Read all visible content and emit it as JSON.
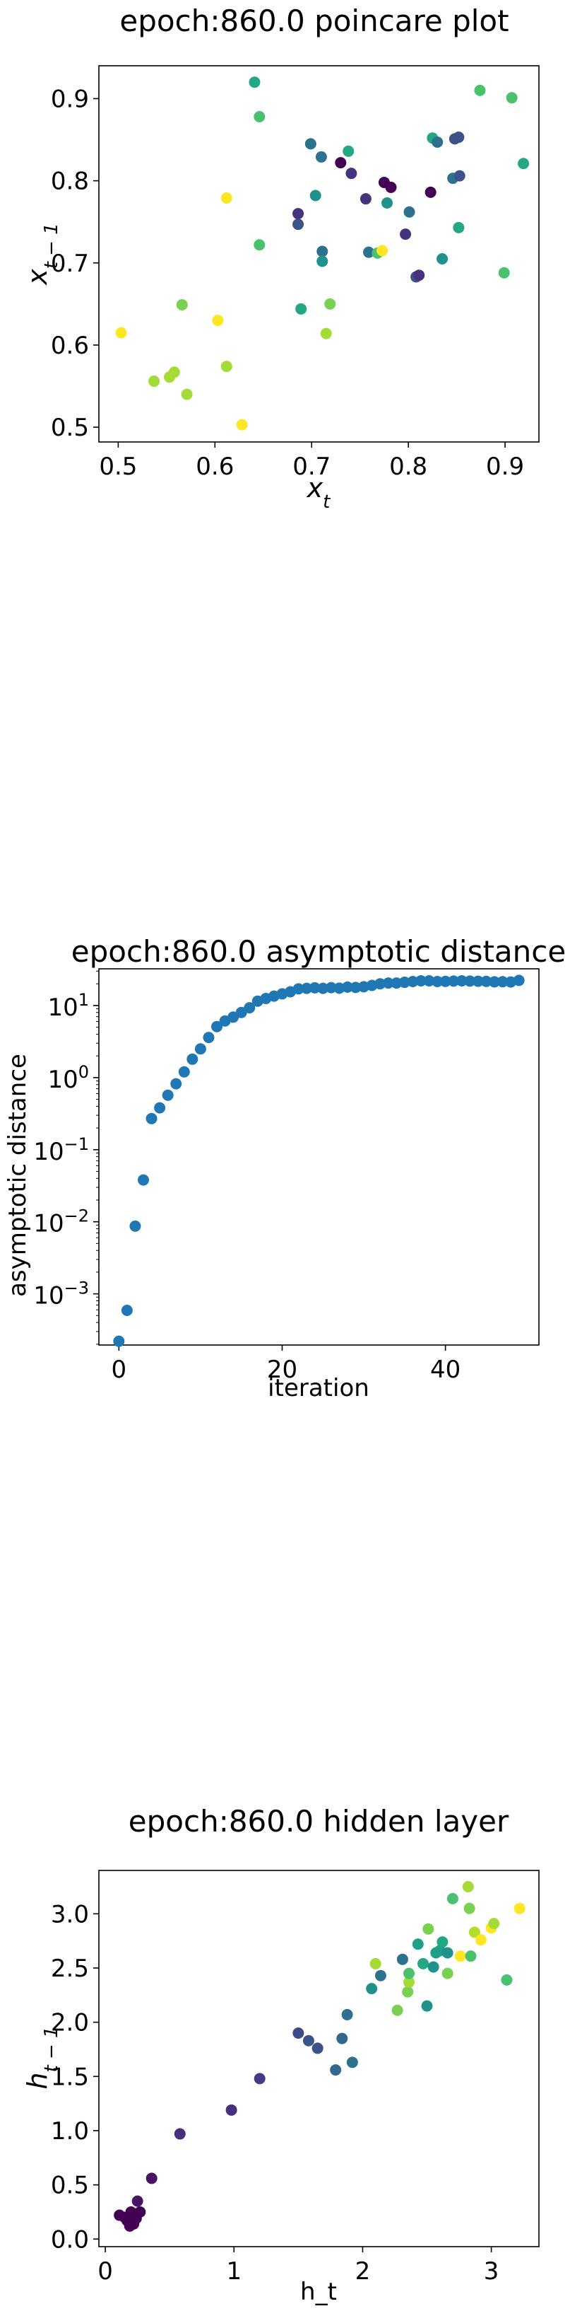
{
  "chart_data": [
    {
      "type": "scatter",
      "title": "epoch:860.0 poincare plot",
      "xlabel": "x_t",
      "ylabel": "x_{t-1}",
      "xlim": [
        0.48,
        0.935
      ],
      "ylim": [
        0.482,
        0.94
      ],
      "xticks": [
        "0.5",
        "0.6",
        "0.7",
        "0.8",
        "0.9"
      ],
      "yticks": [
        "0.5",
        "0.6",
        "0.7",
        "0.8",
        "0.9"
      ],
      "colormap": "viridis",
      "points": [
        {
          "x": 0.503,
          "y": 0.615,
          "c": "#fde725"
        },
        {
          "x": 0.537,
          "y": 0.556,
          "c": "#a5db36"
        },
        {
          "x": 0.553,
          "y": 0.561,
          "c": "#a5db36"
        },
        {
          "x": 0.558,
          "y": 0.567,
          "c": "#a5db36"
        },
        {
          "x": 0.566,
          "y": 0.649,
          "c": "#7ad151"
        },
        {
          "x": 0.571,
          "y": 0.54,
          "c": "#a5db36"
        },
        {
          "x": 0.603,
          "y": 0.63,
          "c": "#fde725"
        },
        {
          "x": 0.612,
          "y": 0.779,
          "c": "#fde725"
        },
        {
          "x": 0.612,
          "y": 0.574,
          "c": "#a5db36"
        },
        {
          "x": 0.628,
          "y": 0.503,
          "c": "#fde725"
        },
        {
          "x": 0.641,
          "y": 0.92,
          "c": "#22a884"
        },
        {
          "x": 0.646,
          "y": 0.878,
          "c": "#4ac16d"
        },
        {
          "x": 0.646,
          "y": 0.722,
          "c": "#4ac16d"
        },
        {
          "x": 0.686,
          "y": 0.76,
          "c": "#46337e"
        },
        {
          "x": 0.686,
          "y": 0.747,
          "c": "#3b528b"
        },
        {
          "x": 0.689,
          "y": 0.644,
          "c": "#22a884"
        },
        {
          "x": 0.699,
          "y": 0.845,
          "c": "#2c728e"
        },
        {
          "x": 0.704,
          "y": 0.782,
          "c": "#21918c"
        },
        {
          "x": 0.71,
          "y": 0.829,
          "c": "#2c728e"
        },
        {
          "x": 0.711,
          "y": 0.714,
          "c": "#2c728e"
        },
        {
          "x": 0.711,
          "y": 0.702,
          "c": "#21918c"
        },
        {
          "x": 0.715,
          "y": 0.614,
          "c": "#a5db36"
        },
        {
          "x": 0.719,
          "y": 0.65,
          "c": "#7ad151"
        },
        {
          "x": 0.73,
          "y": 0.822,
          "c": "#440154"
        },
        {
          "x": 0.738,
          "y": 0.836,
          "c": "#22a884"
        },
        {
          "x": 0.741,
          "y": 0.809,
          "c": "#46337e"
        },
        {
          "x": 0.756,
          "y": 0.778,
          "c": "#46337e"
        },
        {
          "x": 0.759,
          "y": 0.713,
          "c": "#2c728e"
        },
        {
          "x": 0.768,
          "y": 0.712,
          "c": "#4ac16d"
        },
        {
          "x": 0.773,
          "y": 0.715,
          "c": "#fde725"
        },
        {
          "x": 0.775,
          "y": 0.798,
          "c": "#440154"
        },
        {
          "x": 0.778,
          "y": 0.773,
          "c": "#21918c"
        },
        {
          "x": 0.782,
          "y": 0.792,
          "c": "#440154"
        },
        {
          "x": 0.797,
          "y": 0.735,
          "c": "#46337e"
        },
        {
          "x": 0.801,
          "y": 0.762,
          "c": "#2c728e"
        },
        {
          "x": 0.808,
          "y": 0.683,
          "c": "#3b528b"
        },
        {
          "x": 0.811,
          "y": 0.685,
          "c": "#46337e"
        },
        {
          "x": 0.823,
          "y": 0.786,
          "c": "#440154"
        },
        {
          "x": 0.825,
          "y": 0.852,
          "c": "#22a884"
        },
        {
          "x": 0.83,
          "y": 0.847,
          "c": "#2c728e"
        },
        {
          "x": 0.835,
          "y": 0.705,
          "c": "#21918c"
        },
        {
          "x": 0.846,
          "y": 0.803,
          "c": "#2c728e"
        },
        {
          "x": 0.848,
          "y": 0.851,
          "c": "#3b528b"
        },
        {
          "x": 0.852,
          "y": 0.853,
          "c": "#3b528b"
        },
        {
          "x": 0.852,
          "y": 0.743,
          "c": "#22a884"
        },
        {
          "x": 0.853,
          "y": 0.806,
          "c": "#3b528b"
        },
        {
          "x": 0.874,
          "y": 0.91,
          "c": "#4ac16d"
        },
        {
          "x": 0.899,
          "y": 0.688,
          "c": "#4ac16d"
        },
        {
          "x": 0.907,
          "y": 0.901,
          "c": "#4ac16d"
        },
        {
          "x": 0.919,
          "y": 0.821,
          "c": "#22a884"
        }
      ]
    },
    {
      "type": "scatter",
      "title": "epoch:860.0 asymptotic distance",
      "xlabel": "iteration",
      "ylabel": "asymptotic distance",
      "yscale": "log",
      "xlim": [
        -2.45,
        51.45
      ],
      "ylim_log10": [
        -3.71,
        1.509
      ],
      "xticks": [
        "0",
        "20",
        "40"
      ],
      "yticks": [
        "10^-3",
        "10^-2",
        "10^-1",
        "10^0",
        "10^1"
      ],
      "color": "#1f77b4",
      "x": [
        0,
        1,
        2,
        3,
        4,
        5,
        6,
        7,
        8,
        9,
        10,
        11,
        12,
        13,
        14,
        15,
        16,
        17,
        18,
        19,
        20,
        21,
        22,
        23,
        24,
        25,
        26,
        27,
        28,
        29,
        30,
        31,
        32,
        33,
        34,
        35,
        36,
        37,
        38,
        39,
        40,
        41,
        42,
        43,
        44,
        45,
        46,
        47,
        48,
        49
      ],
      "y": [
        0.00022,
        0.00059,
        0.0087,
        0.038,
        0.27,
        0.38,
        0.57,
        0.82,
        1.2,
        1.8,
        2.5,
        3.6,
        5.1,
        6.1,
        6.9,
        8.0,
        9.3,
        11.5,
        12.5,
        13.5,
        14.5,
        15.5,
        17.0,
        17.3,
        17.6,
        17.3,
        17.7,
        17.4,
        18.0,
        17.8,
        18.2,
        19.0,
        20.0,
        20.5,
        20.5,
        21.0,
        21.5,
        22.0,
        22.0,
        21.5,
        21.6,
        21.8,
        22.0,
        21.8,
        21.7,
        21.6,
        21.3,
        21.4,
        21.2,
        22.3
      ]
    },
    {
      "type": "scatter",
      "title": "epoch:860.0 hidden layer",
      "xlabel": "h_t",
      "ylabel": "h_{t-1}",
      "xlim": [
        -0.05,
        3.37
      ],
      "ylim": [
        -0.07,
        3.4
      ],
      "xticks": [
        "0",
        "1",
        "2",
        "3"
      ],
      "yticks": [
        "0.0",
        "0.5",
        "1.0",
        "1.5",
        "2.0",
        "2.5",
        "3.0"
      ],
      "colormap": "viridis",
      "points": [
        {
          "x": 0.11,
          "y": 0.22,
          "c": "#440154"
        },
        {
          "x": 0.15,
          "y": 0.2,
          "c": "#440154"
        },
        {
          "x": 0.17,
          "y": 0.17,
          "c": "#440154"
        },
        {
          "x": 0.19,
          "y": 0.12,
          "c": "#440154"
        },
        {
          "x": 0.2,
          "y": 0.25,
          "c": "#440154"
        },
        {
          "x": 0.22,
          "y": 0.14,
          "c": "#440154"
        },
        {
          "x": 0.24,
          "y": 0.19,
          "c": "#440154"
        },
        {
          "x": 0.25,
          "y": 0.35,
          "c": "#471365"
        },
        {
          "x": 0.27,
          "y": 0.25,
          "c": "#440154"
        },
        {
          "x": 0.36,
          "y": 0.56,
          "c": "#471365"
        },
        {
          "x": 0.58,
          "y": 0.97,
          "c": "#472f7d"
        },
        {
          "x": 0.98,
          "y": 1.19,
          "c": "#472f7d"
        },
        {
          "x": 1.2,
          "y": 1.48,
          "c": "#443b84"
        },
        {
          "x": 1.5,
          "y": 1.9,
          "c": "#3e4989"
        },
        {
          "x": 1.58,
          "y": 1.83,
          "c": "#3b528b"
        },
        {
          "x": 1.65,
          "y": 1.76,
          "c": "#3b528b"
        },
        {
          "x": 1.79,
          "y": 1.56,
          "c": "#31688e"
        },
        {
          "x": 1.84,
          "y": 1.85,
          "c": "#31688e"
        },
        {
          "x": 1.88,
          "y": 2.07,
          "c": "#2c728e"
        },
        {
          "x": 1.92,
          "y": 1.63,
          "c": "#2c728e"
        },
        {
          "x": 2.07,
          "y": 2.31,
          "c": "#21918c"
        },
        {
          "x": 2.1,
          "y": 2.54,
          "c": "#a5db36"
        },
        {
          "x": 2.14,
          "y": 2.43,
          "c": "#2c728e"
        },
        {
          "x": 2.27,
          "y": 2.11,
          "c": "#7ad151"
        },
        {
          "x": 2.31,
          "y": 2.58,
          "c": "#2c728e"
        },
        {
          "x": 2.35,
          "y": 2.28,
          "c": "#7ad151"
        },
        {
          "x": 2.36,
          "y": 2.37,
          "c": "#a5db36"
        },
        {
          "x": 2.36,
          "y": 2.45,
          "c": "#4ac16d"
        },
        {
          "x": 2.43,
          "y": 2.72,
          "c": "#1fa188"
        },
        {
          "x": 2.47,
          "y": 2.54,
          "c": "#22a884"
        },
        {
          "x": 2.5,
          "y": 2.15,
          "c": "#21918c"
        },
        {
          "x": 2.51,
          "y": 2.86,
          "c": "#7ad151"
        },
        {
          "x": 2.55,
          "y": 2.51,
          "c": "#21918c"
        },
        {
          "x": 2.57,
          "y": 2.64,
          "c": "#1fa188"
        },
        {
          "x": 2.6,
          "y": 2.66,
          "c": "#1fa188"
        },
        {
          "x": 2.62,
          "y": 2.74,
          "c": "#22a884"
        },
        {
          "x": 2.66,
          "y": 2.64,
          "c": "#21918c"
        },
        {
          "x": 2.66,
          "y": 2.45,
          "c": "#7ad151"
        },
        {
          "x": 2.7,
          "y": 3.14,
          "c": "#4ac16d"
        },
        {
          "x": 2.76,
          "y": 2.61,
          "c": "#fde725"
        },
        {
          "x": 2.82,
          "y": 3.25,
          "c": "#a5db36"
        },
        {
          "x": 2.83,
          "y": 3.05,
          "c": "#7ad151"
        },
        {
          "x": 2.84,
          "y": 2.61,
          "c": "#4ac16d"
        },
        {
          "x": 2.87,
          "y": 2.83,
          "c": "#b5de2b"
        },
        {
          "x": 2.92,
          "y": 2.76,
          "c": "#fde725"
        },
        {
          "x": 3.0,
          "y": 2.87,
          "c": "#fde725"
        },
        {
          "x": 3.02,
          "y": 2.91,
          "c": "#a5db36"
        },
        {
          "x": 3.12,
          "y": 2.39,
          "c": "#4ac16d"
        },
        {
          "x": 3.22,
          "y": 3.05,
          "c": "#fde725"
        }
      ]
    }
  ]
}
